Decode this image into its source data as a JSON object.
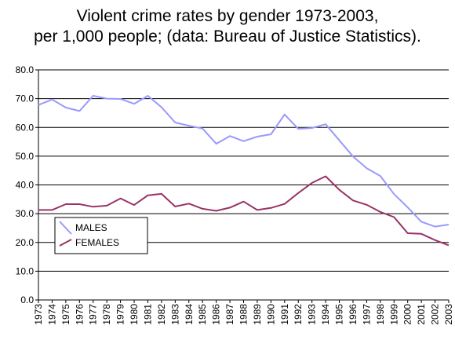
{
  "chart_data": {
    "type": "line",
    "title_lines": [
      "Violent crime rates by gender 1973-2003,",
      "per 1,000 people; (data: Bureau of Justice Statistics)."
    ],
    "x": [
      1973,
      1974,
      1975,
      1976,
      1977,
      1978,
      1979,
      1980,
      1981,
      1982,
      1983,
      1984,
      1985,
      1986,
      1987,
      1988,
      1989,
      1990,
      1991,
      1992,
      1993,
      1994,
      1995,
      1996,
      1997,
      1998,
      1999,
      2000,
      2001,
      2002,
      2003
    ],
    "x_tick_labels": [
      "1973",
      "1974",
      "1975",
      "1976",
      "1977",
      "1978",
      "1979",
      "1980",
      "1981",
      "1982",
      "1983",
      "1984",
      "1985",
      "1986",
      "1987",
      "1988",
      "1989",
      "1990",
      "1991",
      "1992",
      "1993",
      "1994",
      "1995",
      "1996",
      "1997",
      "1998",
      "1999",
      "2000",
      "2001",
      "2002",
      "2003"
    ],
    "series": [
      {
        "name": "MALES",
        "color": "#9999ff",
        "values": [
          67.8,
          69.7,
          66.9,
          65.7,
          71.0,
          70.0,
          69.9,
          68.2,
          71.0,
          67.0,
          61.7,
          60.6,
          59.6,
          54.3,
          57.0,
          55.2,
          56.8,
          57.6,
          64.5,
          59.5,
          59.8,
          61.1,
          55.5,
          49.9,
          45.8,
          43.1,
          36.8,
          32.2,
          27.2,
          25.5,
          26.2
        ]
      },
      {
        "name": "FEMALES",
        "color": "#993366",
        "values": [
          31.3,
          31.3,
          33.3,
          33.3,
          32.4,
          32.8,
          35.3,
          33.0,
          36.4,
          36.9,
          32.5,
          33.5,
          31.7,
          31.0,
          32.1,
          34.2,
          31.3,
          32.0,
          33.4,
          37.2,
          40.7,
          43.0,
          38.3,
          34.6,
          33.1,
          30.6,
          28.8,
          23.2,
          23.0,
          20.8,
          19.0
        ]
      }
    ],
    "y_tick_labels": [
      "0.0",
      "10.0",
      "20.0",
      "30.0",
      "40.0",
      "50.0",
      "60.0",
      "70.0",
      "80.0"
    ],
    "ylim": [
      0,
      80
    ],
    "grid": true,
    "legend_position": "lower-left"
  }
}
